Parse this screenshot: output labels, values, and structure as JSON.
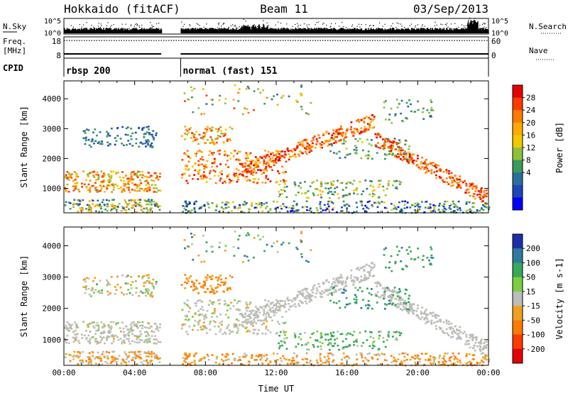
{
  "header": {
    "radar": "Hokkaido (fitACF)",
    "beam": "Beam 11",
    "date": "03/Sep/2013"
  },
  "chart_data": [
    {
      "type": "line",
      "panel": "noise",
      "left_label": "N.Sky",
      "right_label": "N.Search",
      "left_ticks": [
        "10^5",
        "10^0"
      ],
      "right_ticks": [
        "10^5",
        "10^0"
      ]
    },
    {
      "type": "line",
      "panel": "frequency",
      "left_label_top": "Freq.",
      "left_label_bottom": "[MHz]",
      "right_label": "Nave",
      "left_ticks": [
        "18",
        "8"
      ],
      "right_ticks": [
        "60",
        "0"
      ],
      "frequency_mhz": 10,
      "nave": 50
    },
    {
      "type": "table",
      "panel": "cpid",
      "label": "CPID",
      "segments": [
        {
          "name": "rbsp 200",
          "start_h": 0,
          "end_h": 5.5
        },
        {
          "name": "normal (fast) 151",
          "start_h": 6.6,
          "end_h": 24
        }
      ]
    },
    {
      "type": "heatmap",
      "panel": "power",
      "ylabel": "Slant Range [km]",
      "xlim": [
        0,
        24
      ],
      "ylim": [
        180,
        4600
      ],
      "yticks": [
        "1000",
        "2000",
        "3000",
        "4000"
      ],
      "colorbar_label": "Power [dB]",
      "colorbar_ticks": [
        "28",
        "24",
        "20",
        "16",
        "12",
        "8",
        "4"
      ],
      "colorbar_colors": [
        "#e60000",
        "#ff3a00",
        "#ff7a00",
        "#ffaa00",
        "#f0c800",
        "#8fc03c",
        "#3a9a5a",
        "#2a6f9a",
        "#1c46b8",
        "#0000ff"
      ]
    },
    {
      "type": "heatmap",
      "panel": "velocity",
      "ylabel": "Slant Range [km]",
      "xlabel": "Time UT",
      "xlim": [
        0,
        24
      ],
      "ylim": [
        180,
        4600
      ],
      "yticks": [
        "1000",
        "2000",
        "3000",
        "4000"
      ],
      "xticks": [
        "00:00",
        "04:00",
        "08:00",
        "12:00",
        "16:00",
        "20:00",
        "00:00"
      ],
      "colorbar_label": "Velocity [m s-1]",
      "colorbar_ticks": [
        "200",
        "100",
        "50",
        "15",
        "-15",
        "-50",
        "-100",
        "-200"
      ],
      "colorbar_colors": [
        "#1c2fa8",
        "#2e7a9e",
        "#38a85a",
        "#78d040",
        "#bdbdb8",
        "#f0a020",
        "#ff7a00",
        "#ff3a00",
        "#e60000"
      ]
    }
  ]
}
